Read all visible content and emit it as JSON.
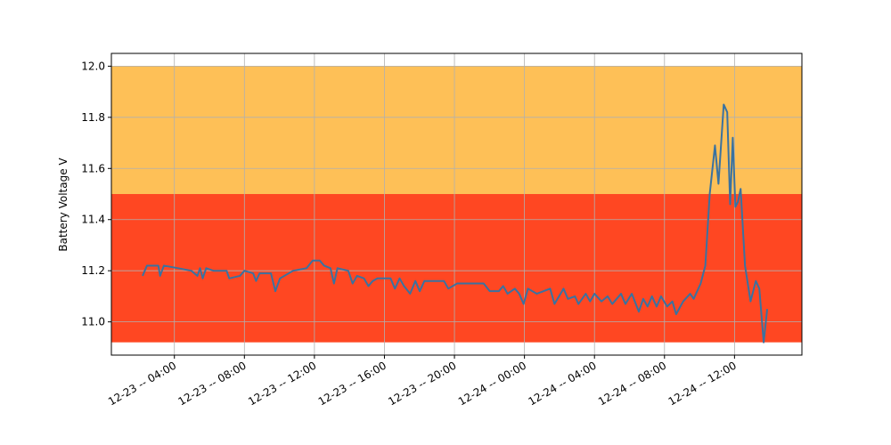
{
  "chart_data": {
    "type": "line",
    "ylabel": "Battery Voltage V",
    "x": [
      "12-23 02:11",
      "12-23 02:26",
      "12-23 03:05",
      "12-23 03:11",
      "12-23 03:24",
      "12-23 04:12",
      "12-23 04:58",
      "12-23 05:19",
      "12-23 05:28",
      "12-23 05:37",
      "12-23 05:49",
      "12-23 06:14",
      "12-23 06:59",
      "12-23 07:08",
      "12-23 07:45",
      "12-23 08:00",
      "12-23 08:30",
      "12-23 08:40",
      "12-23 08:52",
      "12-23 09:31",
      "12-23 09:46",
      "12-23 10:02",
      "12-23 10:47",
      "12-23 11:33",
      "12-23 11:54",
      "12-23 12:18",
      "12-23 12:33",
      "12-23 12:55",
      "12-23 13:07",
      "12-23 13:19",
      "12-23 13:56",
      "12-23 14:11",
      "12-23 14:26",
      "12-23 14:50",
      "12-23 15:05",
      "12-23 15:20",
      "12-23 15:36",
      "12-23 16:21",
      "12-23 16:36",
      "12-23 16:52",
      "12-23 17:07",
      "12-23 17:28",
      "12-23 17:46",
      "12-23 18:01",
      "12-23 18:17",
      "12-23 19:24",
      "12-23 19:39",
      "12-23 20:09",
      "12-23 21:40",
      "12-23 22:01",
      "12-23 22:32",
      "12-23 22:47",
      "12-23 23:02",
      "12-23 23:27",
      "12-23 23:42",
      "12-23 23:57",
      "12-24 00:12",
      "12-24 00:42",
      "12-24 01:28",
      "12-24 01:43",
      "12-24 02:14",
      "12-24 02:29",
      "12-24 02:53",
      "12-24 03:05",
      "12-24 03:30",
      "12-24 03:45",
      "12-24 04:00",
      "12-24 04:24",
      "12-24 04:45",
      "12-24 05:01",
      "12-24 05:31",
      "12-24 05:46",
      "12-24 06:08",
      "12-24 06:32",
      "12-24 06:47",
      "12-24 07:02",
      "12-24 07:17",
      "12-24 07:33",
      "12-24 07:48",
      "12-24 08:09",
      "12-24 08:27",
      "12-24 08:40",
      "12-24 09:04",
      "12-24 09:28",
      "12-24 09:40",
      "12-24 10:04",
      "12-24 10:20",
      "12-24 10:35",
      "12-24 10:53",
      "12-24 11:05",
      "12-24 11:23",
      "12-24 11:35",
      "12-24 11:45",
      "12-24 11:54",
      "12-24 12:03",
      "12-24 12:12",
      "12-24 12:21",
      "12-24 12:36",
      "12-24 12:55",
      "12-24 13:13",
      "12-24 13:25",
      "12-24 13:40",
      "12-24 13:52"
    ],
    "values": [
      11.18,
      11.22,
      11.22,
      11.18,
      11.22,
      11.21,
      11.2,
      11.18,
      11.21,
      11.17,
      11.21,
      11.2,
      11.2,
      11.17,
      11.18,
      11.2,
      11.19,
      11.16,
      11.19,
      11.19,
      11.12,
      11.17,
      11.2,
      11.21,
      11.24,
      11.24,
      11.22,
      11.21,
      11.15,
      11.21,
      11.2,
      11.15,
      11.18,
      11.17,
      11.14,
      11.16,
      11.17,
      11.17,
      11.13,
      11.17,
      11.14,
      11.11,
      11.16,
      11.12,
      11.16,
      11.16,
      11.13,
      11.15,
      11.15,
      11.12,
      11.12,
      11.14,
      11.11,
      11.13,
      11.11,
      11.07,
      11.13,
      11.11,
      11.13,
      11.07,
      11.13,
      11.09,
      11.1,
      11.07,
      11.11,
      11.08,
      11.11,
      11.08,
      11.1,
      11.07,
      11.11,
      11.07,
      11.11,
      11.04,
      11.09,
      11.06,
      11.1,
      11.06,
      11.1,
      11.06,
      11.08,
      11.03,
      11.08,
      11.11,
      11.09,
      11.15,
      11.22,
      11.5,
      11.69,
      11.54,
      11.85,
      11.82,
      11.46,
      11.72,
      11.45,
      11.47,
      11.52,
      11.22,
      11.08,
      11.16,
      11.13,
      10.92,
      11.05
    ],
    "color": "#3a72a0",
    "bands": [
      {
        "ymin": 11.5,
        "ymax": 12.0,
        "color": "#fec057"
      },
      {
        "ymin": 10.92,
        "ymax": 11.5,
        "color": "#ff4722"
      }
    ],
    "xlim": [
      "12-23 00:24",
      "12-24 15:51"
    ],
    "xticks": [
      {
        "value": "12-23 04:00",
        "label": "12-23 -- 04:00"
      },
      {
        "value": "12-23 08:00",
        "label": "12-23 -- 08:00"
      },
      {
        "value": "12-23 12:00",
        "label": "12-23 -- 12:00"
      },
      {
        "value": "12-23 16:00",
        "label": "12-23 -- 16:00"
      },
      {
        "value": "12-23 20:00",
        "label": "12-23 -- 20:00"
      },
      {
        "value": "12-24 00:00",
        "label": "12-24 -- 00:00"
      },
      {
        "value": "12-24 04:00",
        "label": "12-24 -- 04:00"
      },
      {
        "value": "12-24 08:00",
        "label": "12-24 -- 08:00"
      },
      {
        "value": "12-24 12:00",
        "label": "12-24 -- 12:00"
      }
    ],
    "ylim": [
      10.87,
      12.05
    ],
    "yticks": [
      {
        "value": 11.0,
        "label": "11.0"
      },
      11.2,
      11.4,
      11.6,
      11.8,
      {
        "value": 12.0,
        "label": "12.0"
      }
    ],
    "grid": true
  }
}
